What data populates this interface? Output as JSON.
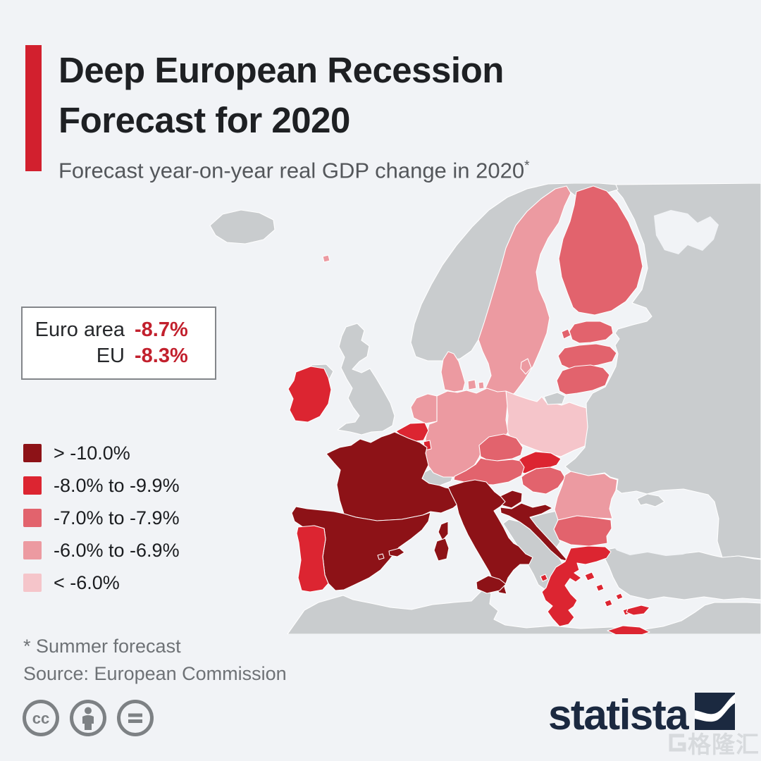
{
  "header": {
    "title_line1": "Deep European Recession",
    "title_line2": "Forecast for 2020",
    "subtitle": "Forecast year-on-year real GDP change in 2020",
    "subtitle_superscript": "*"
  },
  "info_box": {
    "rows": [
      {
        "label": "Euro area",
        "value": "-8.7%"
      },
      {
        "label": "EU",
        "value": "-8.3%"
      }
    ]
  },
  "legend": {
    "items": [
      {
        "label": "> -10.0%",
        "color_key": "c1"
      },
      {
        "label": "-8.0% to -9.9%",
        "color_key": "c2"
      },
      {
        "label": "-7.0% to -7.9%",
        "color_key": "c3"
      },
      {
        "label": "-6.0% to -6.9%",
        "color_key": "c4"
      },
      {
        "label": "< -6.0%",
        "color_key": "c5"
      }
    ]
  },
  "footnotes": {
    "note": "* Summer forecast",
    "source": "Source: European Commission"
  },
  "branding": {
    "logo_text": "statista"
  },
  "watermark": {
    "text": "格隆汇"
  },
  "chart_data": {
    "type": "choropleth_map",
    "title": "Deep European Recession Forecast for 2020",
    "subtitle": "Forecast year-on-year real GDP change in 2020 (Summer forecast)",
    "region": "Europe",
    "source": "European Commission",
    "aggregates": {
      "Euro area": "-8.7%",
      "EU": "-8.3%"
    },
    "class_colors": {
      "c1": "#8d1217",
      "c2": "#dc2531",
      "c3": "#e2636d",
      "c4": "#ec9aa1",
      "c5": "#f5c5ca",
      "neu": "#c9ccce",
      "sea": "#f1f3f6"
    },
    "classes": [
      {
        "key": "c1",
        "label": "> -10.0%"
      },
      {
        "key": "c2",
        "label": "-8.0% to -9.9%"
      },
      {
        "key": "c3",
        "label": "-7.0% to -7.9%"
      },
      {
        "key": "c4",
        "label": "-6.0% to -6.9%"
      },
      {
        "key": "c5",
        "label": "< -6.0%"
      }
    ],
    "countries": [
      {
        "name": "France",
        "class": "> -10.0%"
      },
      {
        "name": "Spain",
        "class": "> -10.0%"
      },
      {
        "name": "Italy",
        "class": "> -10.0%"
      },
      {
        "name": "Croatia",
        "class": "> -10.0%"
      },
      {
        "name": "Slovenia",
        "class": "> -10.0%"
      },
      {
        "name": "Portugal",
        "class": "-8.0% to -9.9%"
      },
      {
        "name": "Ireland",
        "class": "-8.0% to -9.9%"
      },
      {
        "name": "Belgium",
        "class": "-8.0% to -9.9%"
      },
      {
        "name": "Luxembourg",
        "class": "-8.0% to -9.9%"
      },
      {
        "name": "Slovakia",
        "class": "-8.0% to -9.9%"
      },
      {
        "name": "Greece",
        "class": "-8.0% to -9.9%"
      },
      {
        "name": "Cyprus",
        "class": "-8.0% to -9.9%"
      },
      {
        "name": "Czechia",
        "class": "-7.0% to -7.9%"
      },
      {
        "name": "Austria",
        "class": "-7.0% to -7.9%"
      },
      {
        "name": "Hungary",
        "class": "-7.0% to -7.9%"
      },
      {
        "name": "Finland",
        "class": "-7.0% to -7.9%"
      },
      {
        "name": "Estonia",
        "class": "-7.0% to -7.9%"
      },
      {
        "name": "Latvia",
        "class": "-7.0% to -7.9%"
      },
      {
        "name": "Lithuania",
        "class": "-7.0% to -7.9%"
      },
      {
        "name": "Bulgaria",
        "class": "-7.0% to -7.9%"
      },
      {
        "name": "Germany",
        "class": "-6.0% to -6.9%"
      },
      {
        "name": "Netherlands",
        "class": "-6.0% to -6.9%"
      },
      {
        "name": "Denmark",
        "class": "-6.0% to -6.9%"
      },
      {
        "name": "Sweden",
        "class": "-6.0% to -6.9%"
      },
      {
        "name": "Romania",
        "class": "-6.0% to -6.9%"
      },
      {
        "name": "Poland",
        "class": "< -6.0%"
      },
      {
        "name": "United Kingdom",
        "class": "non-EU"
      },
      {
        "name": "Norway",
        "class": "non-EU"
      },
      {
        "name": "Switzerland",
        "class": "non-EU"
      },
      {
        "name": "Iceland",
        "class": "non-EU"
      },
      {
        "name": "Russia",
        "class": "non-EU"
      },
      {
        "name": "Ukraine",
        "class": "non-EU"
      },
      {
        "name": "Belarus",
        "class": "non-EU"
      },
      {
        "name": "Turkey",
        "class": "non-EU"
      },
      {
        "name": "Western Balkans",
        "class": "non-EU"
      }
    ],
    "legend_position": "left",
    "accent_color": "#d2202e",
    "value_color": "#c2202d",
    "brand_color": "#1b2940"
  }
}
